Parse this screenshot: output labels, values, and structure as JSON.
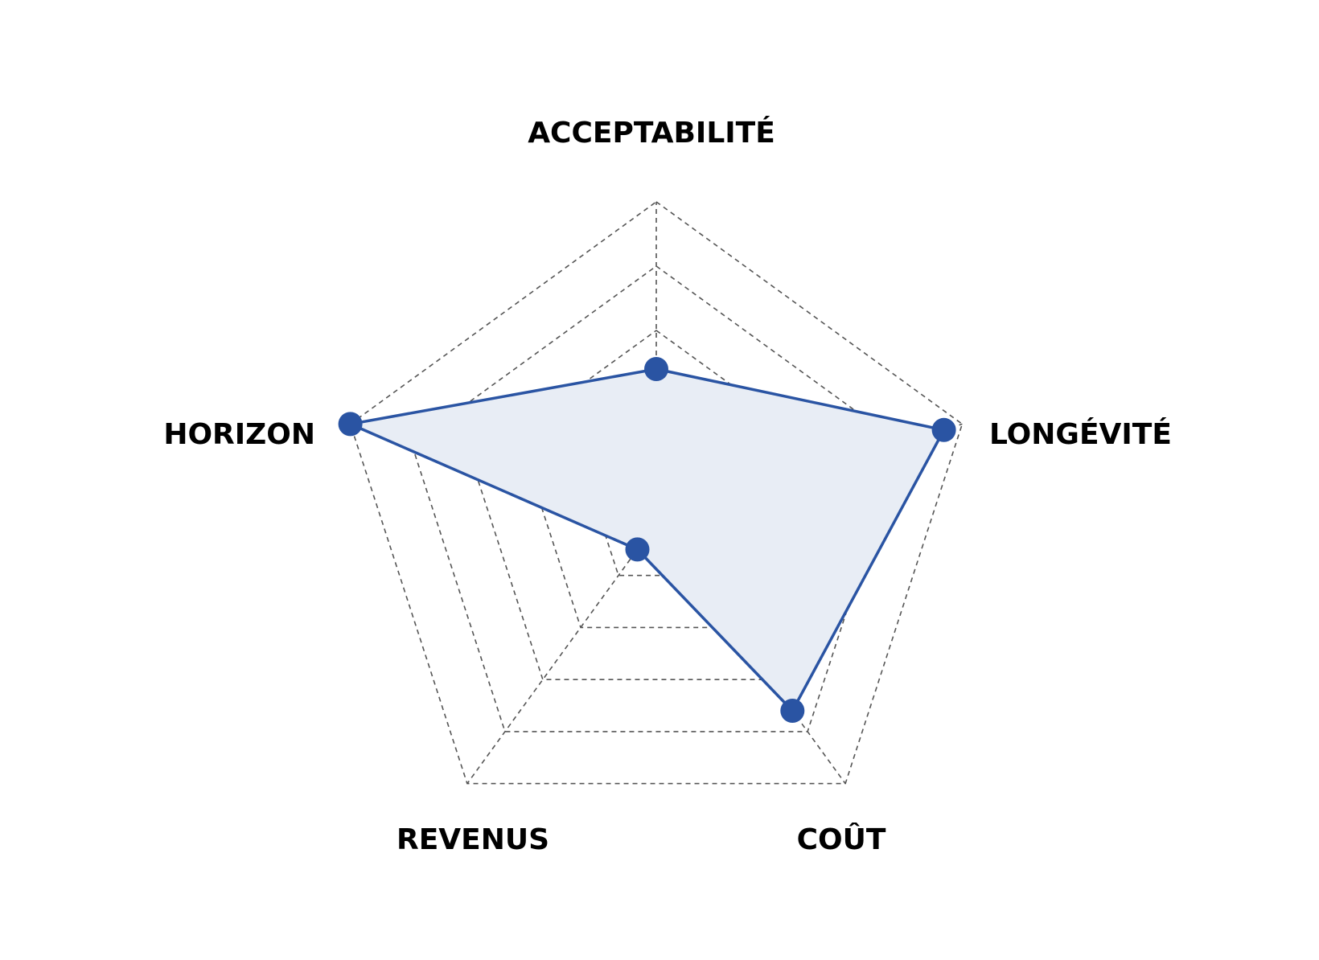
{
  "chart_data": {
    "type": "radar",
    "axes": [
      "ACCEPTABILITÉ",
      "LONGÉVITÉ",
      "COÛT",
      "REVENUS",
      "HORIZON"
    ],
    "rlim": [
      0,
      5
    ],
    "grid_levels": [
      0.3,
      1,
      2,
      3,
      4
    ],
    "grid": true,
    "series": [
      {
        "values": [
          2.4,
          4.7,
          3.6,
          0.5,
          5
        ],
        "line_color": "#2a54a3",
        "fill_color": "#e8edf5"
      }
    ]
  }
}
